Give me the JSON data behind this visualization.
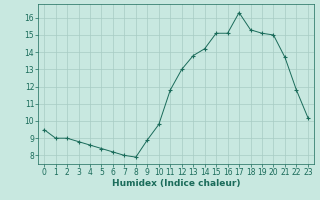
{
  "x": [
    0,
    1,
    2,
    3,
    4,
    5,
    6,
    7,
    8,
    9,
    10,
    11,
    12,
    13,
    14,
    15,
    16,
    17,
    18,
    19,
    20,
    21,
    22,
    23
  ],
  "y": [
    9.5,
    9.0,
    9.0,
    8.8,
    8.6,
    8.4,
    8.2,
    8.0,
    7.9,
    8.9,
    9.8,
    11.8,
    13.0,
    13.8,
    14.2,
    15.1,
    15.1,
    16.3,
    15.3,
    15.1,
    15.0,
    13.7,
    11.8,
    10.2
  ],
  "line_color": "#1a6b5a",
  "marker": "+",
  "bg_color": "#c8e8e0",
  "grid_color": "#a8ccc4",
  "xlabel": "Humidex (Indice chaleur)",
  "ylim": [
    7.5,
    16.8
  ],
  "xlim": [
    -0.5,
    23.5
  ],
  "yticks": [
    8,
    9,
    10,
    11,
    12,
    13,
    14,
    15,
    16
  ],
  "xticks": [
    0,
    1,
    2,
    3,
    4,
    5,
    6,
    7,
    8,
    9,
    10,
    11,
    12,
    13,
    14,
    15,
    16,
    17,
    18,
    19,
    20,
    21,
    22,
    23
  ],
  "tick_color": "#1a6b5a",
  "label_fontsize": 6.5,
  "tick_fontsize": 5.5
}
